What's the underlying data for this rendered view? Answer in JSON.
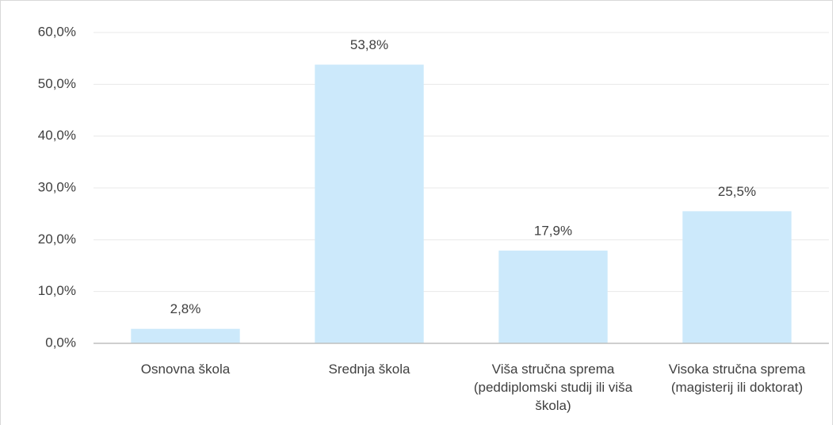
{
  "chart_data": {
    "type": "bar",
    "categories": [
      "Osnovna škola",
      "Srednja škola",
      "Viša stručna sprema (peddiplomski studij ili viša škola)",
      "Visoka stručna sprema (magisterij ili doktorat)"
    ],
    "values": [
      2.8,
      53.8,
      17.9,
      25.5
    ],
    "value_labels": [
      "2,8%",
      "53,8%",
      "17,9%",
      "25,5%"
    ],
    "color": "#cce9fb",
    "ylim": [
      0,
      60
    ],
    "yticks": [
      {
        "value": 0,
        "label": "0,0%"
      },
      {
        "value": 10,
        "label": "10,0%"
      },
      {
        "value": 20,
        "label": "20,0%"
      },
      {
        "value": 30,
        "label": "30,0%"
      },
      {
        "value": 40,
        "label": "40,0%"
      },
      {
        "value": 50,
        "label": "50,0%"
      },
      {
        "value": 60,
        "label": "60,0%"
      }
    ],
    "grid": true
  }
}
